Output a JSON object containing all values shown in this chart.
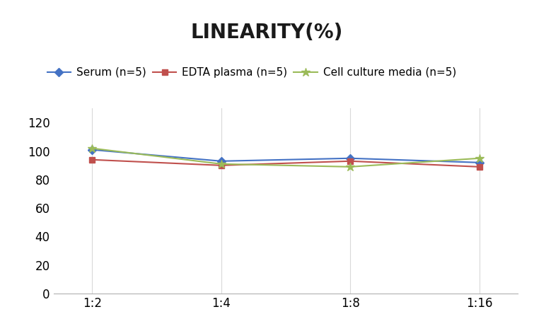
{
  "title": "LINEARITY(%)",
  "x_labels": [
    "1:2",
    "1:4",
    "1:8",
    "1:16"
  ],
  "x_positions": [
    0,
    1,
    2,
    3
  ],
  "series": [
    {
      "label": "Serum (n=5)",
      "values": [
        101,
        93,
        95,
        92
      ],
      "color": "#4472C4",
      "marker": "D",
      "markersize": 6,
      "linewidth": 1.5
    },
    {
      "label": "EDTA plasma (n=5)",
      "values": [
        94,
        90,
        93,
        89
      ],
      "color": "#C0504D",
      "marker": "s",
      "markersize": 6,
      "linewidth": 1.5
    },
    {
      "label": "Cell culture media (n=5)",
      "values": [
        102,
        91,
        89,
        95
      ],
      "color": "#9BBB59",
      "marker": "*",
      "markersize": 9,
      "linewidth": 1.5
    }
  ],
  "ylim": [
    0,
    130
  ],
  "yticks": [
    0,
    20,
    40,
    60,
    80,
    100,
    120
  ],
  "title_fontsize": 20,
  "legend_fontsize": 11,
  "tick_fontsize": 12,
  "background_color": "#ffffff",
  "grid_color": "#d9d9d9"
}
